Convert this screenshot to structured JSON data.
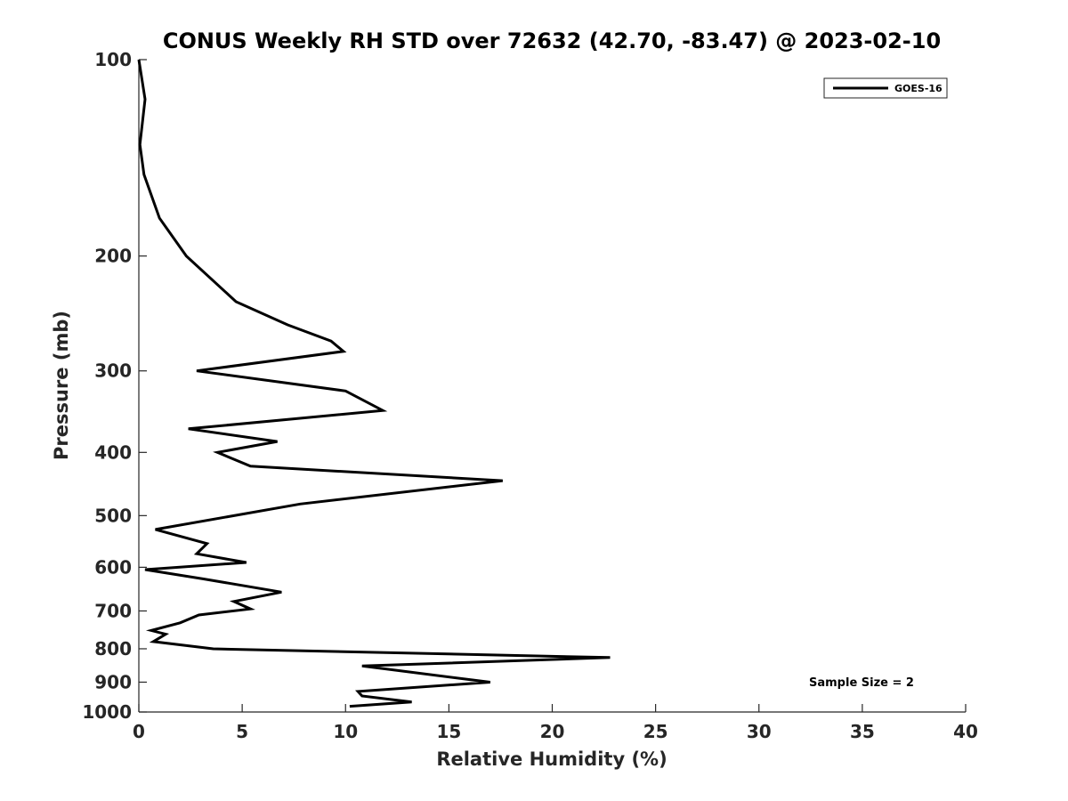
{
  "chart_data": {
    "type": "line",
    "title": "CONUS Weekly RH STD over 72632 (42.70, -83.47) @ 2023-02-10",
    "xlabel": "Relative Humidity (%)",
    "ylabel": "Pressure (mb)",
    "xlim": [
      0,
      40
    ],
    "ylim": [
      100,
      1000
    ],
    "yscale": "log",
    "y_reversed": true,
    "x_ticks": [
      0,
      5,
      10,
      15,
      20,
      25,
      30,
      35,
      40
    ],
    "y_ticks": [
      100,
      200,
      300,
      400,
      500,
      600,
      700,
      800,
      900,
      1000
    ],
    "grid": false,
    "legend_position": "top-right",
    "series": [
      {
        "name": "GOES-16",
        "color": "#000000",
        "x": [
          0.0,
          0.3,
          0.05,
          0.25,
          1.0,
          2.3,
          4.7,
          7.2,
          9.3,
          9.9,
          2.8,
          10.0,
          11.8,
          2.4,
          6.7,
          3.8,
          5.4,
          17.6,
          7.8,
          0.8,
          3.3,
          2.8,
          5.2,
          0.3,
          3.1,
          6.9,
          4.6,
          5.4,
          2.9,
          2.0,
          0.6,
          1.3,
          0.7,
          3.6,
          22.8,
          10.8,
          17.0,
          10.6,
          10.8,
          13.2,
          10.2
        ],
        "y": [
          100,
          115,
          135,
          150,
          175,
          200,
          235,
          255,
          270,
          280,
          300,
          322,
          345,
          368,
          385,
          400,
          420,
          442,
          480,
          525,
          552,
          572,
          590,
          605,
          625,
          655,
          677,
          695,
          710,
          730,
          750,
          760,
          780,
          800,
          825,
          850,
          900,
          930,
          945,
          965,
          980
        ]
      }
    ],
    "annotations": [
      "Sample Size = 2"
    ]
  }
}
